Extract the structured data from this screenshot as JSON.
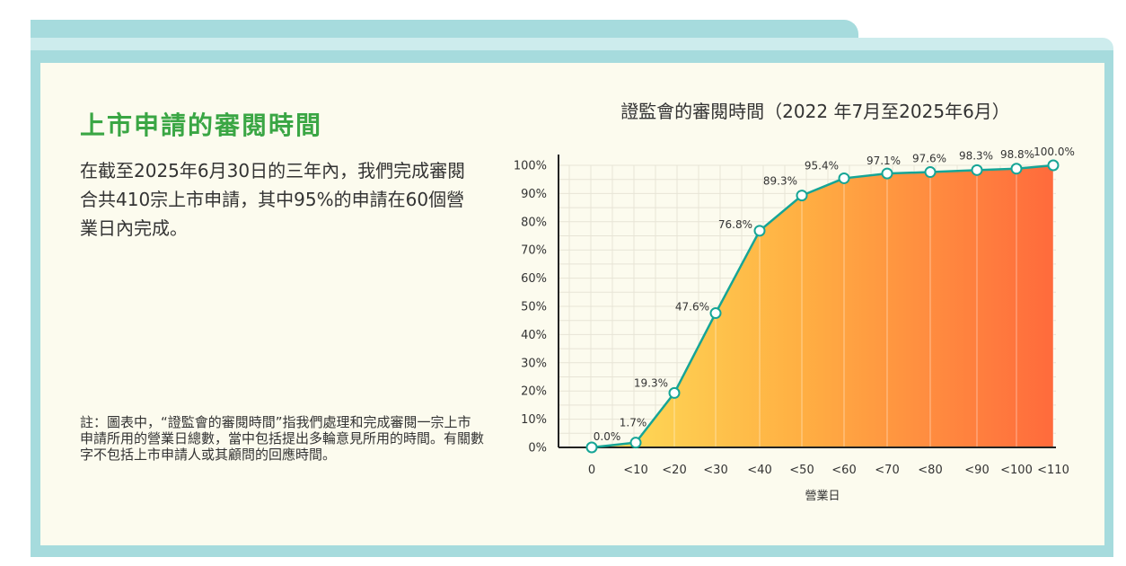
{
  "section": {
    "title": "上市申請的審閱時間",
    "description": "在截至2025年6月30日的三年內，我們完成審閱合共410宗上市申請，其中95%的申請在60個營業日內完成。",
    "note": "註：圖表中，“證監會的審閱時間”指我們處理和完成審閱一宗上市申請所用的營業日總數，當中包括提出多輪意見所用的時間。有關數字不包括上市申請人或其顧問的回應時間。"
  },
  "chart_data": {
    "type": "area",
    "title": "證監會的審閱時間（2022 年7月至2025年6月）",
    "xlabel": "營業日",
    "ylabel": "",
    "categories": [
      "0",
      "<10",
      "<20",
      "<30",
      "<40",
      "<50",
      "<60",
      "<70",
      "<80",
      "<90",
      "<100",
      "<110"
    ],
    "values": [
      0.0,
      1.7,
      19.3,
      47.6,
      76.8,
      89.3,
      95.4,
      97.1,
      97.6,
      98.3,
      98.8,
      100.0
    ],
    "data_labels": [
      "0.0%",
      "1.7%",
      "19.3%",
      "47.6%",
      "76.8%",
      "89.3%",
      "95.4%",
      "97.1%",
      "97.6%",
      "98.3%",
      "98.8%",
      "100.0%"
    ],
    "yticks": [
      "0%",
      "10%",
      "20%",
      "30%",
      "40%",
      "50%",
      "60%",
      "70%",
      "80%",
      "90%",
      "100%"
    ],
    "ylim": [
      0,
      100
    ],
    "grid": true,
    "colors": {
      "line": "#16a596",
      "fill_start": "#fde05a",
      "fill_end": "#ff6a3c",
      "grid": "#e7e4d6"
    }
  }
}
